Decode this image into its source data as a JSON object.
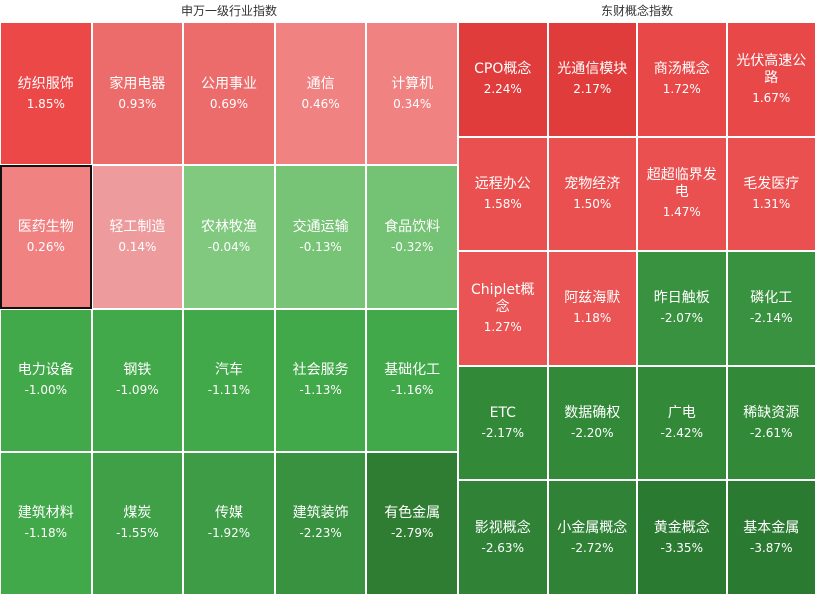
{
  "panels": [
    {
      "title": "申万一级行业指数",
      "selected": 5,
      "colors": [
        "#ec4848",
        "#ec6c6c",
        "#ec6c6c",
        "#f08282",
        "#f08282",
        "#f08282",
        "#ee9b9e",
        "#80c97f",
        "#78c477",
        "#74c273",
        "#42a94a",
        "#42a94a",
        "#42a94a",
        "#42a94a",
        "#42a94a",
        "#42a94a",
        "#3fa047",
        "#3d9c45",
        "#38923f",
        "#2f7d33"
      ]
    },
    {
      "title": "东财概念指数",
      "selected": -1,
      "colors": [
        "#e03c3c",
        "#e03c3c",
        "#e84848",
        "#e84848",
        "#ea5050",
        "#ea5050",
        "#ea5050",
        "#ea5050",
        "#ea5454",
        "#ea5454",
        "#38923f",
        "#38923f",
        "#328a39",
        "#328a39",
        "#328a39",
        "#328a39",
        "#2f8236",
        "#2f8236",
        "#2b7a31",
        "#2b7a31"
      ]
    }
  ],
  "chart_data": [
    {
      "type": "heatmap",
      "title": "申万一级行业指数",
      "rows": 4,
      "cols": 5,
      "categories": [
        "纺织服饰",
        "家用电器",
        "公用事业",
        "通信",
        "计算机",
        "医药生物",
        "轻工制造",
        "农林牧渔",
        "交通运输",
        "食品饮料",
        "电力设备",
        "钢铁",
        "汽车",
        "社会服务",
        "基础化工",
        "建筑材料",
        "煤炭",
        "传媒",
        "建筑装饰",
        "有色金属"
      ],
      "labels": [
        "1.85%",
        "0.93%",
        "0.69%",
        "0.46%",
        "0.34%",
        "0.26%",
        "0.14%",
        "-0.04%",
        "-0.13%",
        "-0.32%",
        "-1.00%",
        "-1.09%",
        "-1.11%",
        "-1.13%",
        "-1.16%",
        "-1.18%",
        "-1.55%",
        "-1.92%",
        "-2.23%",
        "-2.79%"
      ],
      "values": [
        1.85,
        0.93,
        0.69,
        0.46,
        0.34,
        0.26,
        0.14,
        -0.04,
        -0.13,
        -0.32,
        -1.0,
        -1.09,
        -1.11,
        -1.13,
        -1.16,
        -1.18,
        -1.55,
        -1.92,
        -2.23,
        -2.79
      ]
    },
    {
      "type": "heatmap",
      "title": "东财概念指数",
      "rows": 5,
      "cols": 4,
      "categories": [
        "CPO概念",
        "光通信模块",
        "商汤概念",
        "光伏高速公路",
        "远程办公",
        "宠物经济",
        "超超临界发电",
        "毛发医疗",
        "Chiplet概念",
        "阿兹海默",
        "昨日触板",
        "磷化工",
        "ETC",
        "数据确权",
        "广电",
        "稀缺资源",
        "影视概念",
        "小金属概念",
        "黄金概念",
        "基本金属"
      ],
      "labels": [
        "2.24%",
        "2.17%",
        "1.72%",
        "1.67%",
        "1.58%",
        "1.50%",
        "1.47%",
        "1.31%",
        "1.27%",
        "1.18%",
        "-2.07%",
        "-2.14%",
        "-2.17%",
        "-2.20%",
        "-2.42%",
        "-2.61%",
        "-2.63%",
        "-2.72%",
        "-3.35%",
        "-3.87%"
      ],
      "values": [
        2.24,
        2.17,
        1.72,
        1.67,
        1.58,
        1.5,
        1.47,
        1.31,
        1.27,
        1.18,
        -2.07,
        -2.14,
        -2.17,
        -2.2,
        -2.42,
        -2.61,
        -2.63,
        -2.72,
        -3.35,
        -3.87
      ]
    }
  ]
}
